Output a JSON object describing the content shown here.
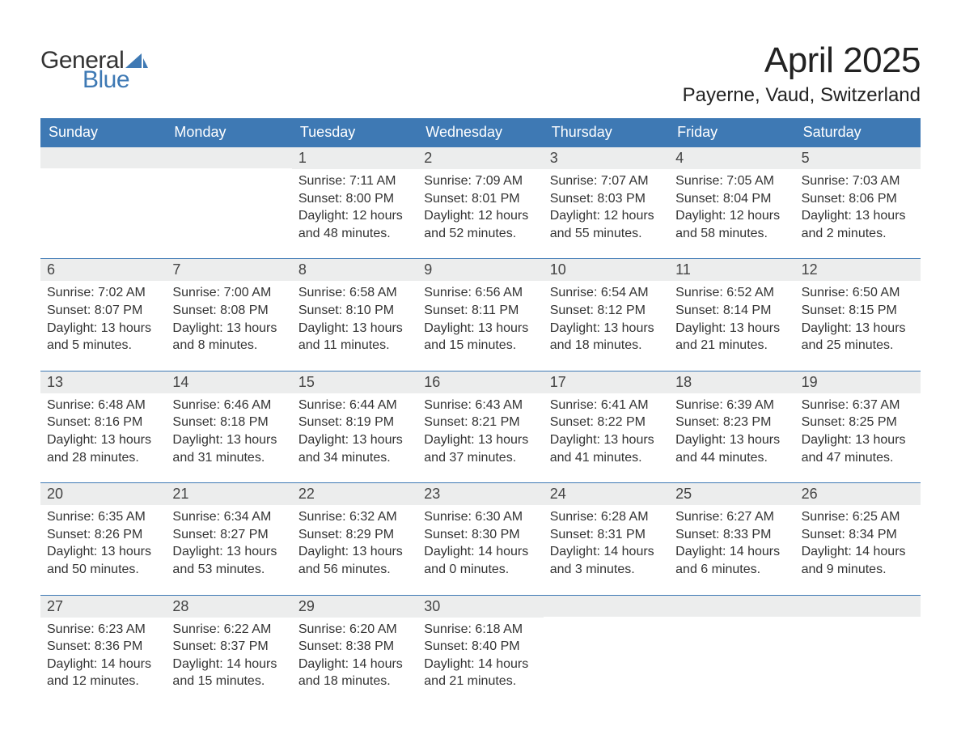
{
  "logo": {
    "general": "General",
    "blue": "Blue",
    "sail_color": "#3e79b4"
  },
  "title": "April 2025",
  "location": "Payerne, Vaud, Switzerland",
  "colors": {
    "header_bg": "#3e79b4",
    "header_text": "#ffffff",
    "daynum_bg": "#eceded",
    "row_border": "#3e79b4",
    "body_text": "#333333",
    "page_bg": "#ffffff"
  },
  "typography": {
    "title_fontsize": 44,
    "location_fontsize": 24,
    "weekday_fontsize": 18,
    "daynum_fontsize": 18,
    "body_fontsize": 16
  },
  "weekdays": [
    "Sunday",
    "Monday",
    "Tuesday",
    "Wednesday",
    "Thursday",
    "Friday",
    "Saturday"
  ],
  "weeks": [
    [
      {
        "day": "",
        "sunrise": "",
        "sunset": "",
        "daylight": ""
      },
      {
        "day": "",
        "sunrise": "",
        "sunset": "",
        "daylight": ""
      },
      {
        "day": "1",
        "sunrise": "Sunrise: 7:11 AM",
        "sunset": "Sunset: 8:00 PM",
        "daylight": "Daylight: 12 hours and 48 minutes."
      },
      {
        "day": "2",
        "sunrise": "Sunrise: 7:09 AM",
        "sunset": "Sunset: 8:01 PM",
        "daylight": "Daylight: 12 hours and 52 minutes."
      },
      {
        "day": "3",
        "sunrise": "Sunrise: 7:07 AM",
        "sunset": "Sunset: 8:03 PM",
        "daylight": "Daylight: 12 hours and 55 minutes."
      },
      {
        "day": "4",
        "sunrise": "Sunrise: 7:05 AM",
        "sunset": "Sunset: 8:04 PM",
        "daylight": "Daylight: 12 hours and 58 minutes."
      },
      {
        "day": "5",
        "sunrise": "Sunrise: 7:03 AM",
        "sunset": "Sunset: 8:06 PM",
        "daylight": "Daylight: 13 hours and 2 minutes."
      }
    ],
    [
      {
        "day": "6",
        "sunrise": "Sunrise: 7:02 AM",
        "sunset": "Sunset: 8:07 PM",
        "daylight": "Daylight: 13 hours and 5 minutes."
      },
      {
        "day": "7",
        "sunrise": "Sunrise: 7:00 AM",
        "sunset": "Sunset: 8:08 PM",
        "daylight": "Daylight: 13 hours and 8 minutes."
      },
      {
        "day": "8",
        "sunrise": "Sunrise: 6:58 AM",
        "sunset": "Sunset: 8:10 PM",
        "daylight": "Daylight: 13 hours and 11 minutes."
      },
      {
        "day": "9",
        "sunrise": "Sunrise: 6:56 AM",
        "sunset": "Sunset: 8:11 PM",
        "daylight": "Daylight: 13 hours and 15 minutes."
      },
      {
        "day": "10",
        "sunrise": "Sunrise: 6:54 AM",
        "sunset": "Sunset: 8:12 PM",
        "daylight": "Daylight: 13 hours and 18 minutes."
      },
      {
        "day": "11",
        "sunrise": "Sunrise: 6:52 AM",
        "sunset": "Sunset: 8:14 PM",
        "daylight": "Daylight: 13 hours and 21 minutes."
      },
      {
        "day": "12",
        "sunrise": "Sunrise: 6:50 AM",
        "sunset": "Sunset: 8:15 PM",
        "daylight": "Daylight: 13 hours and 25 minutes."
      }
    ],
    [
      {
        "day": "13",
        "sunrise": "Sunrise: 6:48 AM",
        "sunset": "Sunset: 8:16 PM",
        "daylight": "Daylight: 13 hours and 28 minutes."
      },
      {
        "day": "14",
        "sunrise": "Sunrise: 6:46 AM",
        "sunset": "Sunset: 8:18 PM",
        "daylight": "Daylight: 13 hours and 31 minutes."
      },
      {
        "day": "15",
        "sunrise": "Sunrise: 6:44 AM",
        "sunset": "Sunset: 8:19 PM",
        "daylight": "Daylight: 13 hours and 34 minutes."
      },
      {
        "day": "16",
        "sunrise": "Sunrise: 6:43 AM",
        "sunset": "Sunset: 8:21 PM",
        "daylight": "Daylight: 13 hours and 37 minutes."
      },
      {
        "day": "17",
        "sunrise": "Sunrise: 6:41 AM",
        "sunset": "Sunset: 8:22 PM",
        "daylight": "Daylight: 13 hours and 41 minutes."
      },
      {
        "day": "18",
        "sunrise": "Sunrise: 6:39 AM",
        "sunset": "Sunset: 8:23 PM",
        "daylight": "Daylight: 13 hours and 44 minutes."
      },
      {
        "day": "19",
        "sunrise": "Sunrise: 6:37 AM",
        "sunset": "Sunset: 8:25 PM",
        "daylight": "Daylight: 13 hours and 47 minutes."
      }
    ],
    [
      {
        "day": "20",
        "sunrise": "Sunrise: 6:35 AM",
        "sunset": "Sunset: 8:26 PM",
        "daylight": "Daylight: 13 hours and 50 minutes."
      },
      {
        "day": "21",
        "sunrise": "Sunrise: 6:34 AM",
        "sunset": "Sunset: 8:27 PM",
        "daylight": "Daylight: 13 hours and 53 minutes."
      },
      {
        "day": "22",
        "sunrise": "Sunrise: 6:32 AM",
        "sunset": "Sunset: 8:29 PM",
        "daylight": "Daylight: 13 hours and 56 minutes."
      },
      {
        "day": "23",
        "sunrise": "Sunrise: 6:30 AM",
        "sunset": "Sunset: 8:30 PM",
        "daylight": "Daylight: 14 hours and 0 minutes."
      },
      {
        "day": "24",
        "sunrise": "Sunrise: 6:28 AM",
        "sunset": "Sunset: 8:31 PM",
        "daylight": "Daylight: 14 hours and 3 minutes."
      },
      {
        "day": "25",
        "sunrise": "Sunrise: 6:27 AM",
        "sunset": "Sunset: 8:33 PM",
        "daylight": "Daylight: 14 hours and 6 minutes."
      },
      {
        "day": "26",
        "sunrise": "Sunrise: 6:25 AM",
        "sunset": "Sunset: 8:34 PM",
        "daylight": "Daylight: 14 hours and 9 minutes."
      }
    ],
    [
      {
        "day": "27",
        "sunrise": "Sunrise: 6:23 AM",
        "sunset": "Sunset: 8:36 PM",
        "daylight": "Daylight: 14 hours and 12 minutes."
      },
      {
        "day": "28",
        "sunrise": "Sunrise: 6:22 AM",
        "sunset": "Sunset: 8:37 PM",
        "daylight": "Daylight: 14 hours and 15 minutes."
      },
      {
        "day": "29",
        "sunrise": "Sunrise: 6:20 AM",
        "sunset": "Sunset: 8:38 PM",
        "daylight": "Daylight: 14 hours and 18 minutes."
      },
      {
        "day": "30",
        "sunrise": "Sunrise: 6:18 AM",
        "sunset": "Sunset: 8:40 PM",
        "daylight": "Daylight: 14 hours and 21 minutes."
      },
      {
        "day": "",
        "sunrise": "",
        "sunset": "",
        "daylight": ""
      },
      {
        "day": "",
        "sunrise": "",
        "sunset": "",
        "daylight": ""
      },
      {
        "day": "",
        "sunrise": "",
        "sunset": "",
        "daylight": ""
      }
    ]
  ]
}
